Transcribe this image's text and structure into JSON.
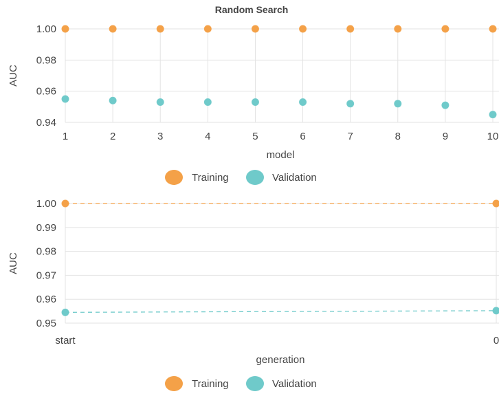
{
  "colors": {
    "training": "#f4a148",
    "validation": "#6fcaca",
    "grid": "#e3e3e3"
  },
  "chart_data": [
    {
      "type": "scatter",
      "title": "Random Search",
      "xlabel": "model",
      "ylabel": "AUC",
      "categories": [
        "1",
        "2",
        "3",
        "4",
        "5",
        "6",
        "7",
        "8",
        "9",
        "10"
      ],
      "ylim": [
        0.935,
        1.005
      ],
      "yticks": [
        "1.00",
        "0.98",
        "0.96",
        "0.94"
      ],
      "ytick_values": [
        1.0,
        0.98,
        0.96,
        0.94
      ],
      "grid": true,
      "legend_placement": "bottom-center",
      "series": [
        {
          "name": "Training",
          "values": [
            1.0,
            1.0,
            1.0,
            1.0,
            1.0,
            1.0,
            1.0,
            1.0,
            1.0,
            1.0
          ]
        },
        {
          "name": "Validation",
          "values": [
            0.955,
            0.954,
            0.953,
            0.953,
            0.953,
            0.953,
            0.952,
            0.952,
            0.951,
            0.945
          ]
        }
      ]
    },
    {
      "type": "line",
      "title": "",
      "xlabel": "generation",
      "ylabel": "AUC",
      "categories": [
        "start",
        "0"
      ],
      "ylim": [
        0.95,
        1.005
      ],
      "yticks": [
        "1.00",
        "0.99",
        "0.98",
        "0.97",
        "0.96",
        "0.95"
      ],
      "ytick_values": [
        1.0,
        0.99,
        0.98,
        0.97,
        0.96,
        0.95
      ],
      "grid": true,
      "legend_placement": "bottom-center",
      "series": [
        {
          "name": "Training",
          "values": [
            1.0,
            1.0
          ]
        },
        {
          "name": "Validation",
          "values": [
            0.9545,
            0.9552
          ]
        }
      ]
    }
  ]
}
